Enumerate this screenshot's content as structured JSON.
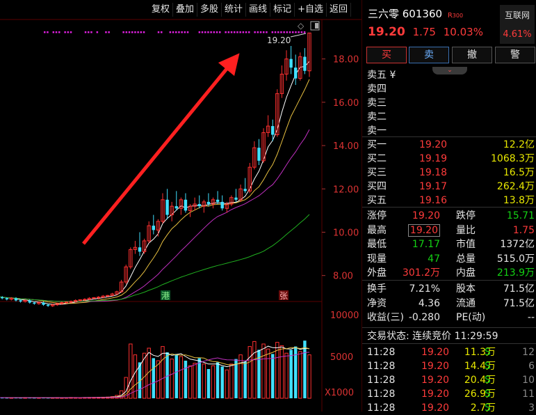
{
  "toolbar": [
    "复权",
    "叠加",
    "多股",
    "统计",
    "画线",
    "标记",
    "+自选",
    "返回"
  ],
  "price_axis": [
    "18.00",
    "16.00",
    "14.00",
    "12.00",
    "10.00",
    "8.00"
  ],
  "vol_axis": [
    "10000",
    "5000",
    "X1000"
  ],
  "high_label": "19.20",
  "marker_gang": "港",
  "marker_zhang": "张",
  "header": {
    "name": "三六零 601360",
    "tag": "R",
    "tag_num": "300",
    "price": "19.20",
    "change": "1.75",
    "pct": "10.03%",
    "badge_label": "互联网",
    "badge_pct": "4.61%"
  },
  "buttons": {
    "buy": "买",
    "sell": "卖",
    "cancel": "撤",
    "alert": "警"
  },
  "sell_levels": [
    "卖五 ¥",
    "卖四",
    "卖三",
    "卖二",
    "卖一"
  ],
  "buy_levels": [
    {
      "label": "买一",
      "price": "19.20",
      "vol": "12.2亿"
    },
    {
      "label": "买二",
      "price": "19.19",
      "vol": "1068.3万"
    },
    {
      "label": "买三",
      "price": "19.18",
      "vol": "16.5万"
    },
    {
      "label": "买四",
      "price": "19.17",
      "vol": "262.4万"
    },
    {
      "label": "买五",
      "price": "19.16",
      "vol": "13.8万"
    }
  ],
  "stats": [
    {
      "l1": "涨停",
      "v1": "19.20",
      "l2": "跌停",
      "v2": "15.71"
    },
    {
      "l1": "最高",
      "v1": "19.20",
      "l2": "量比",
      "v2": "1.75"
    },
    {
      "l1": "最低",
      "v1": "17.17",
      "l2": "市值",
      "v2": "1372亿"
    },
    {
      "l1": "现量",
      "v1": "47",
      "l2": "总量",
      "v2": "515.0万"
    },
    {
      "l1": "外盘",
      "v1": "301.2万",
      "l2": "内盘",
      "v2": "213.9万"
    }
  ],
  "stats2": [
    {
      "l1": "换手",
      "v1": "7.21%",
      "l2": "股本",
      "v2": "71.5亿"
    },
    {
      "l1": "净资",
      "v1": "4.36",
      "l2": "流通",
      "v2": "71.5亿"
    },
    {
      "l1": "收益(三)",
      "v1": "-0.280",
      "l2": "PE(动)",
      "v2": "--"
    }
  ],
  "trade_status": "交易状态: 连续竞价 11:29:59",
  "ticks": [
    {
      "t": "11:28",
      "p": "19.20",
      "v": "11.3万",
      "s": "S",
      "n": "12"
    },
    {
      "t": "11:28",
      "p": "19.20",
      "v": "14.4万",
      "s": "S",
      "n": "6"
    },
    {
      "t": "11:28",
      "p": "19.20",
      "v": "20.4万",
      "s": "S",
      "n": "10"
    },
    {
      "t": "11:28",
      "p": "19.20",
      "v": "26.9万",
      "s": "S",
      "n": "11"
    },
    {
      "t": "11:28",
      "p": "19.20",
      "v": "2.7万",
      "s": "S",
      "n": "3"
    }
  ],
  "chart_data": {
    "type": "candlestick",
    "price_ylim": [
      6.8,
      19.5
    ],
    "candles": [
      [
        7.1,
        7.15,
        7.0,
        7.05
      ],
      [
        7.05,
        7.1,
        6.95,
        7.0
      ],
      [
        7.0,
        7.05,
        6.9,
        6.95
      ],
      [
        6.95,
        7.0,
        6.85,
        6.9
      ],
      [
        6.9,
        7.0,
        6.85,
        6.95
      ],
      [
        6.95,
        7.0,
        6.8,
        6.85
      ],
      [
        6.85,
        6.9,
        6.75,
        6.8
      ],
      [
        6.8,
        6.9,
        6.75,
        6.85
      ],
      [
        6.85,
        6.9,
        6.7,
        6.75
      ],
      [
        6.75,
        6.8,
        6.65,
        6.7
      ],
      [
        6.7,
        6.8,
        6.65,
        6.75
      ],
      [
        6.75,
        6.8,
        6.6,
        6.65
      ],
      [
        6.65,
        6.7,
        6.55,
        6.6
      ],
      [
        6.6,
        6.7,
        6.55,
        6.65
      ],
      [
        6.65,
        6.75,
        6.6,
        6.7
      ],
      [
        6.7,
        6.8,
        6.65,
        6.75
      ],
      [
        6.75,
        6.8,
        6.7,
        6.78
      ],
      [
        6.78,
        6.85,
        6.72,
        6.8
      ],
      [
        6.8,
        6.9,
        6.75,
        6.85
      ],
      [
        6.85,
        6.9,
        6.8,
        6.88
      ],
      [
        6.88,
        6.95,
        6.82,
        6.9
      ],
      [
        6.9,
        7.0,
        6.85,
        6.95
      ],
      [
        6.95,
        7.0,
        6.9,
        6.98
      ],
      [
        6.98,
        7.05,
        6.9,
        7.0
      ],
      [
        7.0,
        7.1,
        6.95,
        7.05
      ],
      [
        7.05,
        7.1,
        7.0,
        7.08
      ],
      [
        7.08,
        7.2,
        7.05,
        7.15
      ],
      [
        7.15,
        7.3,
        7.1,
        7.25
      ],
      [
        7.25,
        7.8,
        7.2,
        7.7
      ],
      [
        7.7,
        8.5,
        7.6,
        8.4
      ],
      [
        8.4,
        9.3,
        8.3,
        9.2
      ],
      [
        9.2,
        9.6,
        9.0,
        9.3
      ],
      [
        9.3,
        10.0,
        8.9,
        9.1
      ],
      [
        9.1,
        9.7,
        9.0,
        9.6
      ],
      [
        9.6,
        10.5,
        9.5,
        10.3
      ],
      [
        10.3,
        10.8,
        9.9,
        10.1
      ],
      [
        10.1,
        10.6,
        9.8,
        10.5
      ],
      [
        10.5,
        11.8,
        10.4,
        11.5
      ],
      [
        11.5,
        12.0,
        10.6,
        10.8
      ],
      [
        10.8,
        11.4,
        10.5,
        11.2
      ],
      [
        11.2,
        11.9,
        11.0,
        11.1
      ],
      [
        11.1,
        11.6,
        10.8,
        11.5
      ],
      [
        11.5,
        11.8,
        10.9,
        11.0
      ],
      [
        11.0,
        11.3,
        10.7,
        11.2
      ],
      [
        11.2,
        11.6,
        11.0,
        11.3
      ],
      [
        11.3,
        11.7,
        11.1,
        11.2
      ],
      [
        11.2,
        11.5,
        10.9,
        11.4
      ],
      [
        11.4,
        11.8,
        11.2,
        11.3
      ],
      [
        11.3,
        11.6,
        11.1,
        11.5
      ],
      [
        11.5,
        11.9,
        11.3,
        11.4
      ],
      [
        11.4,
        11.7,
        11.0,
        11.1
      ],
      [
        11.1,
        11.4,
        10.9,
        11.3
      ],
      [
        11.3,
        11.7,
        11.2,
        11.6
      ],
      [
        11.6,
        12.0,
        11.4,
        11.5
      ],
      [
        11.5,
        12.2,
        11.4,
        12.0
      ],
      [
        12.0,
        12.5,
        11.8,
        11.9
      ],
      [
        11.9,
        13.2,
        11.8,
        13.0
      ],
      [
        13.0,
        14.2,
        12.9,
        13.9
      ],
      [
        13.9,
        14.3,
        13.1,
        13.3
      ],
      [
        13.3,
        14.8,
        13.2,
        14.6
      ],
      [
        14.6,
        15.4,
        14.4,
        14.9
      ],
      [
        14.9,
        15.2,
        14.2,
        14.5
      ],
      [
        14.5,
        16.6,
        14.4,
        16.4
      ],
      [
        16.4,
        17.7,
        16.2,
        17.3
      ],
      [
        17.3,
        18.4,
        17.0,
        18.0
      ],
      [
        18.0,
        18.6,
        17.3,
        17.6
      ],
      [
        17.6,
        18.2,
        16.8,
        17.1
      ],
      [
        17.1,
        18.3,
        17.0,
        18.1
      ],
      [
        18.1,
        18.5,
        17.3,
        17.45
      ],
      [
        17.45,
        19.2,
        17.17,
        19.2
      ]
    ],
    "volume_ylim": [
      0,
      11000
    ],
    "volumes": [
      80,
      90,
      70,
      60,
      80,
      70,
      60,
      90,
      70,
      60,
      80,
      70,
      60,
      80,
      90,
      70,
      80,
      100,
      90,
      80,
      90,
      100,
      110,
      120,
      130,
      150,
      200,
      350,
      900,
      2500,
      6500,
      5200,
      4300,
      5400,
      6000,
      4800,
      4500,
      6200,
      5500,
      4700,
      5300,
      5000,
      4500,
      3900,
      4200,
      4800,
      4100,
      3500,
      3900,
      4300,
      3800,
      3400,
      4100,
      4700,
      5200,
      4400,
      6200,
      6800,
      5800,
      6500,
      5900,
      5300,
      6700,
      6300,
      5400,
      5800,
      6200,
      5600,
      6900,
      5200
    ],
    "high_marker": 19.2
  }
}
